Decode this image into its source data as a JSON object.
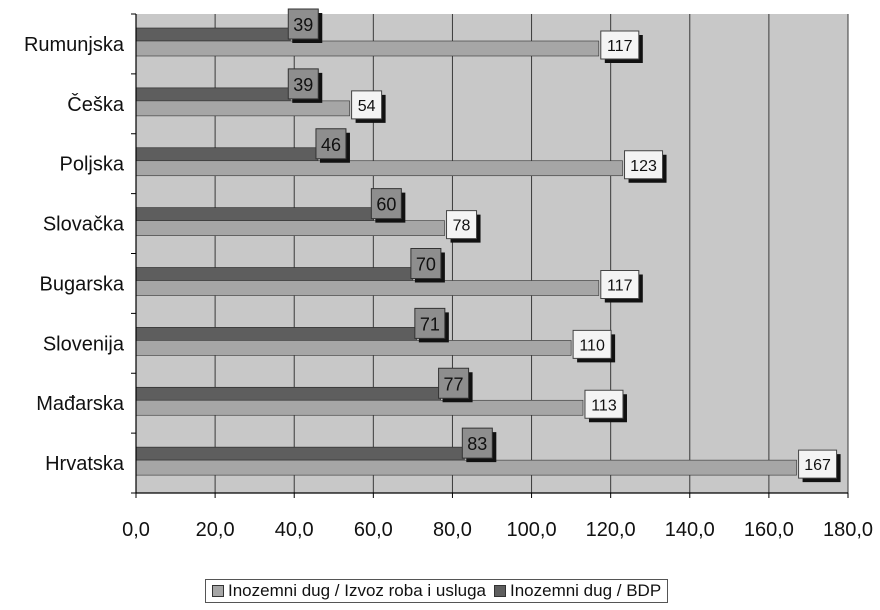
{
  "chart_data": {
    "type": "bar",
    "orientation": "horizontal",
    "categories": [
      "Rumunjska",
      "Češka",
      "Poljska",
      "Slovačka",
      "Bugarska",
      "Slovenija",
      "Mađarska",
      "Hrvatska"
    ],
    "series": [
      {
        "name": "Inozemni dug / BDP",
        "values": [
          39,
          39,
          46,
          60,
          70,
          71,
          77,
          83
        ],
        "color": "#5e5e5e"
      },
      {
        "name": "Inozemni dug / Izvoz roba i usluga",
        "values": [
          117,
          54,
          123,
          78,
          117,
          110,
          113,
          167
        ],
        "color": "#a6a6a6"
      }
    ],
    "xlim": [
      0,
      180
    ],
    "x_ticks": [
      "0,0",
      "20,0",
      "40,0",
      "60,0",
      "80,0",
      "100,0",
      "120,0",
      "140,0",
      "160,0",
      "180,0"
    ],
    "x_tick_values": [
      0,
      20,
      40,
      60,
      80,
      100,
      120,
      140,
      160,
      180
    ],
    "grid": true,
    "plot_background": "#c8c8c8",
    "legend_position": "bottom",
    "legend": [
      "Inozemni dug / Izvoz roba i usluga",
      "Inozemni dug / BDP"
    ]
  }
}
